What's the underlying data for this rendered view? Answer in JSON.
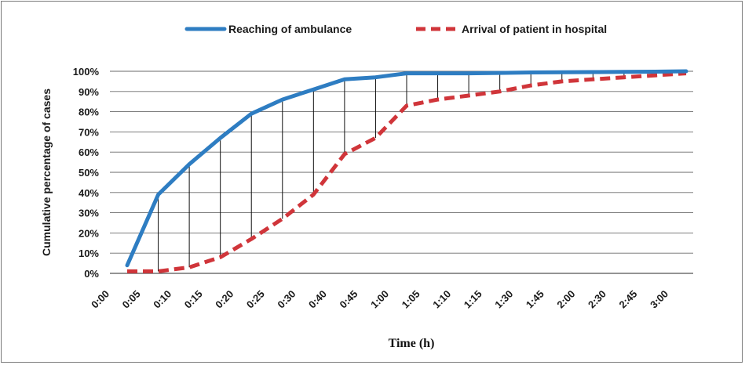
{
  "chart_data": {
    "type": "line",
    "title": "",
    "xlabel": "Time (h)",
    "ylabel": "Cumulative percentage of cases",
    "categories": [
      "0:00",
      "0:05",
      "0:10",
      "0:15",
      "0:20",
      "0:25",
      "0:30",
      "0:40",
      "0:45",
      "1:00",
      "1:05",
      "1:10",
      "1:15",
      "1:30",
      "1:45",
      "2:00",
      "2:30",
      "2:45",
      "3:00"
    ],
    "y_ticks": [
      "0%",
      "10%",
      "20%",
      "30%",
      "40%",
      "50%",
      "60%",
      "70%",
      "80%",
      "90%",
      "100%"
    ],
    "ylim": [
      0,
      100
    ],
    "y_unit": "%",
    "grid": "horizontal",
    "legend_position": "top",
    "drop_lines": true,
    "series": [
      {
        "name": "Reaching of ambulance",
        "color": "#2e7dc2",
        "style": "solid",
        "values": [
          4,
          39,
          54,
          67,
          79,
          86,
          91,
          96,
          97,
          99,
          99,
          99,
          99.2,
          99.4,
          99.5,
          99.6,
          99.7,
          99.8,
          100
        ]
      },
      {
        "name": "Arrival of patient in hospital",
        "color": "#d0353a",
        "style": "dashed",
        "values": [
          1,
          1,
          3,
          8,
          17,
          27,
          39,
          59,
          67,
          83,
          86,
          88,
          90,
          93,
          95,
          96,
          97,
          98,
          99
        ]
      }
    ]
  }
}
